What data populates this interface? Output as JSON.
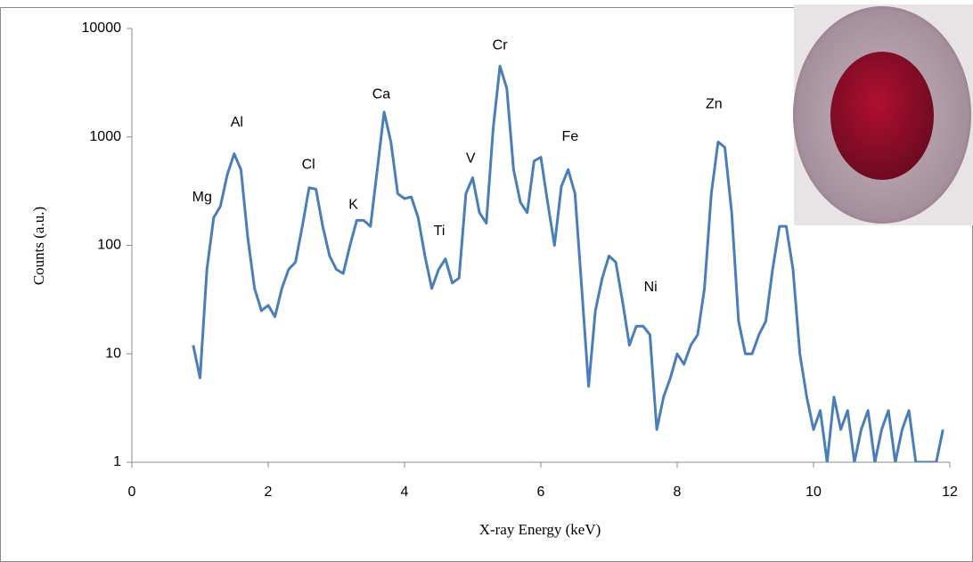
{
  "chart_data": {
    "type": "line",
    "log_y": true,
    "xlabel": "X-ray Energy (keV)",
    "ylabel": "Counts (a.u.)",
    "xlim": [
      0,
      12
    ],
    "xticks": [
      0,
      2,
      4,
      6,
      8,
      10,
      12
    ],
    "ylim": [
      1,
      10000
    ],
    "yticks": [
      1,
      10,
      100,
      1000,
      10000
    ],
    "x": [
      0.9,
      1.0,
      1.1,
      1.2,
      1.3,
      1.4,
      1.5,
      1.6,
      1.7,
      1.8,
      1.9,
      2.0,
      2.1,
      2.2,
      2.3,
      2.4,
      2.5,
      2.6,
      2.7,
      2.8,
      2.9,
      3.0,
      3.1,
      3.2,
      3.3,
      3.4,
      3.5,
      3.6,
      3.7,
      3.8,
      3.9,
      4.0,
      4.1,
      4.2,
      4.3,
      4.4,
      4.5,
      4.6,
      4.7,
      4.8,
      4.9,
      5.0,
      5.1,
      5.2,
      5.3,
      5.4,
      5.5,
      5.6,
      5.7,
      5.8,
      5.9,
      6.0,
      6.1,
      6.2,
      6.3,
      6.4,
      6.5,
      6.6,
      6.7,
      6.8,
      6.9,
      7.0,
      7.1,
      7.2,
      7.3,
      7.4,
      7.5,
      7.6,
      7.7,
      7.8,
      7.9,
      8.0,
      8.1,
      8.2,
      8.3,
      8.4,
      8.5,
      8.6,
      8.7,
      8.8,
      8.9,
      9.0,
      9.1,
      9.2,
      9.3,
      9.4,
      9.5,
      9.6,
      9.7,
      9.8,
      9.9,
      10.0,
      10.1,
      10.2,
      10.3,
      10.4,
      10.5,
      10.6,
      10.7,
      10.8,
      10.9,
      11.0,
      11.1,
      11.2,
      11.3,
      11.4,
      11.5,
      11.6,
      11.7,
      11.8,
      11.9
    ],
    "series": [
      {
        "color": "#4a7ebb",
        "values": [
          12,
          6,
          60,
          180,
          230,
          450,
          700,
          500,
          120,
          40,
          25,
          28,
          22,
          40,
          60,
          70,
          150,
          340,
          330,
          150,
          80,
          60,
          55,
          100,
          170,
          170,
          150,
          500,
          1700,
          900,
          300,
          270,
          280,
          180,
          80,
          40,
          60,
          75,
          45,
          50,
          300,
          420,
          200,
          160,
          1200,
          4500,
          2800,
          500,
          250,
          200,
          600,
          650,
          250,
          100,
          350,
          500,
          300,
          40,
          5,
          25,
          50,
          80,
          70,
          30,
          12,
          18,
          18,
          15,
          2,
          4,
          6,
          10,
          8,
          12,
          15,
          40,
          300,
          900,
          800,
          200,
          20,
          10,
          10,
          15,
          20,
          60,
          150,
          150,
          60,
          10,
          4,
          2,
          3,
          1,
          4,
          2,
          3,
          1,
          2,
          3,
          1,
          2,
          3,
          1,
          2,
          3,
          1,
          1,
          1,
          1,
          2
        ]
      }
    ],
    "annotations": [
      {
        "text": "Mg",
        "x": 1.03,
        "y": 275
      },
      {
        "text": "Al",
        "x": 1.54,
        "y": 1350
      },
      {
        "text": "Cl",
        "x": 2.59,
        "y": 550
      },
      {
        "text": "K",
        "x": 3.25,
        "y": 235
      },
      {
        "text": "Ca",
        "x": 3.66,
        "y": 2450
      },
      {
        "text": "Ti",
        "x": 4.51,
        "y": 134
      },
      {
        "text": "V",
        "x": 4.97,
        "y": 630
      },
      {
        "text": "Cr",
        "x": 5.4,
        "y": 6950
      },
      {
        "text": "Fe",
        "x": 6.43,
        "y": 1000
      },
      {
        "text": "Ni",
        "x": 7.61,
        "y": 41
      },
      {
        "text": "Zn",
        "x": 8.54,
        "y": 2000
      }
    ]
  }
}
